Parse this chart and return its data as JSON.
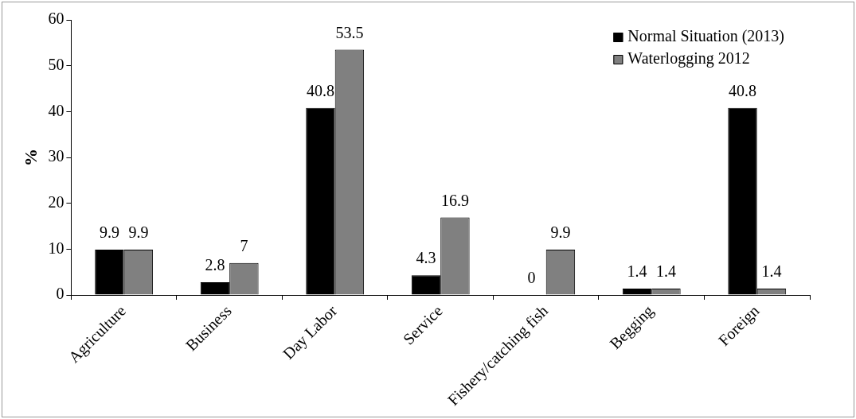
{
  "chart_data": {
    "type": "bar",
    "ylabel": "%",
    "categories": [
      "Agriculture",
      "Business",
      "Day Labor",
      "Service",
      "Fishery/catching fish",
      "Begging",
      "Foreign"
    ],
    "series": [
      {
        "name": "Normal Situation (2013)",
        "color": "#000000",
        "values": [
          9.9,
          2.8,
          40.8,
          4.3,
          0,
          1.4,
          40.8
        ]
      },
      {
        "name": "Waterlogging 2012",
        "color": "#808080",
        "values": [
          9.9,
          7,
          53.5,
          16.9,
          9.9,
          1.4,
          1.4
        ]
      }
    ],
    "ylim": [
      0,
      60
    ],
    "yticks": [
      0,
      10,
      20,
      30,
      40,
      50,
      60
    ],
    "data_labels": true,
    "legend": "top right"
  }
}
